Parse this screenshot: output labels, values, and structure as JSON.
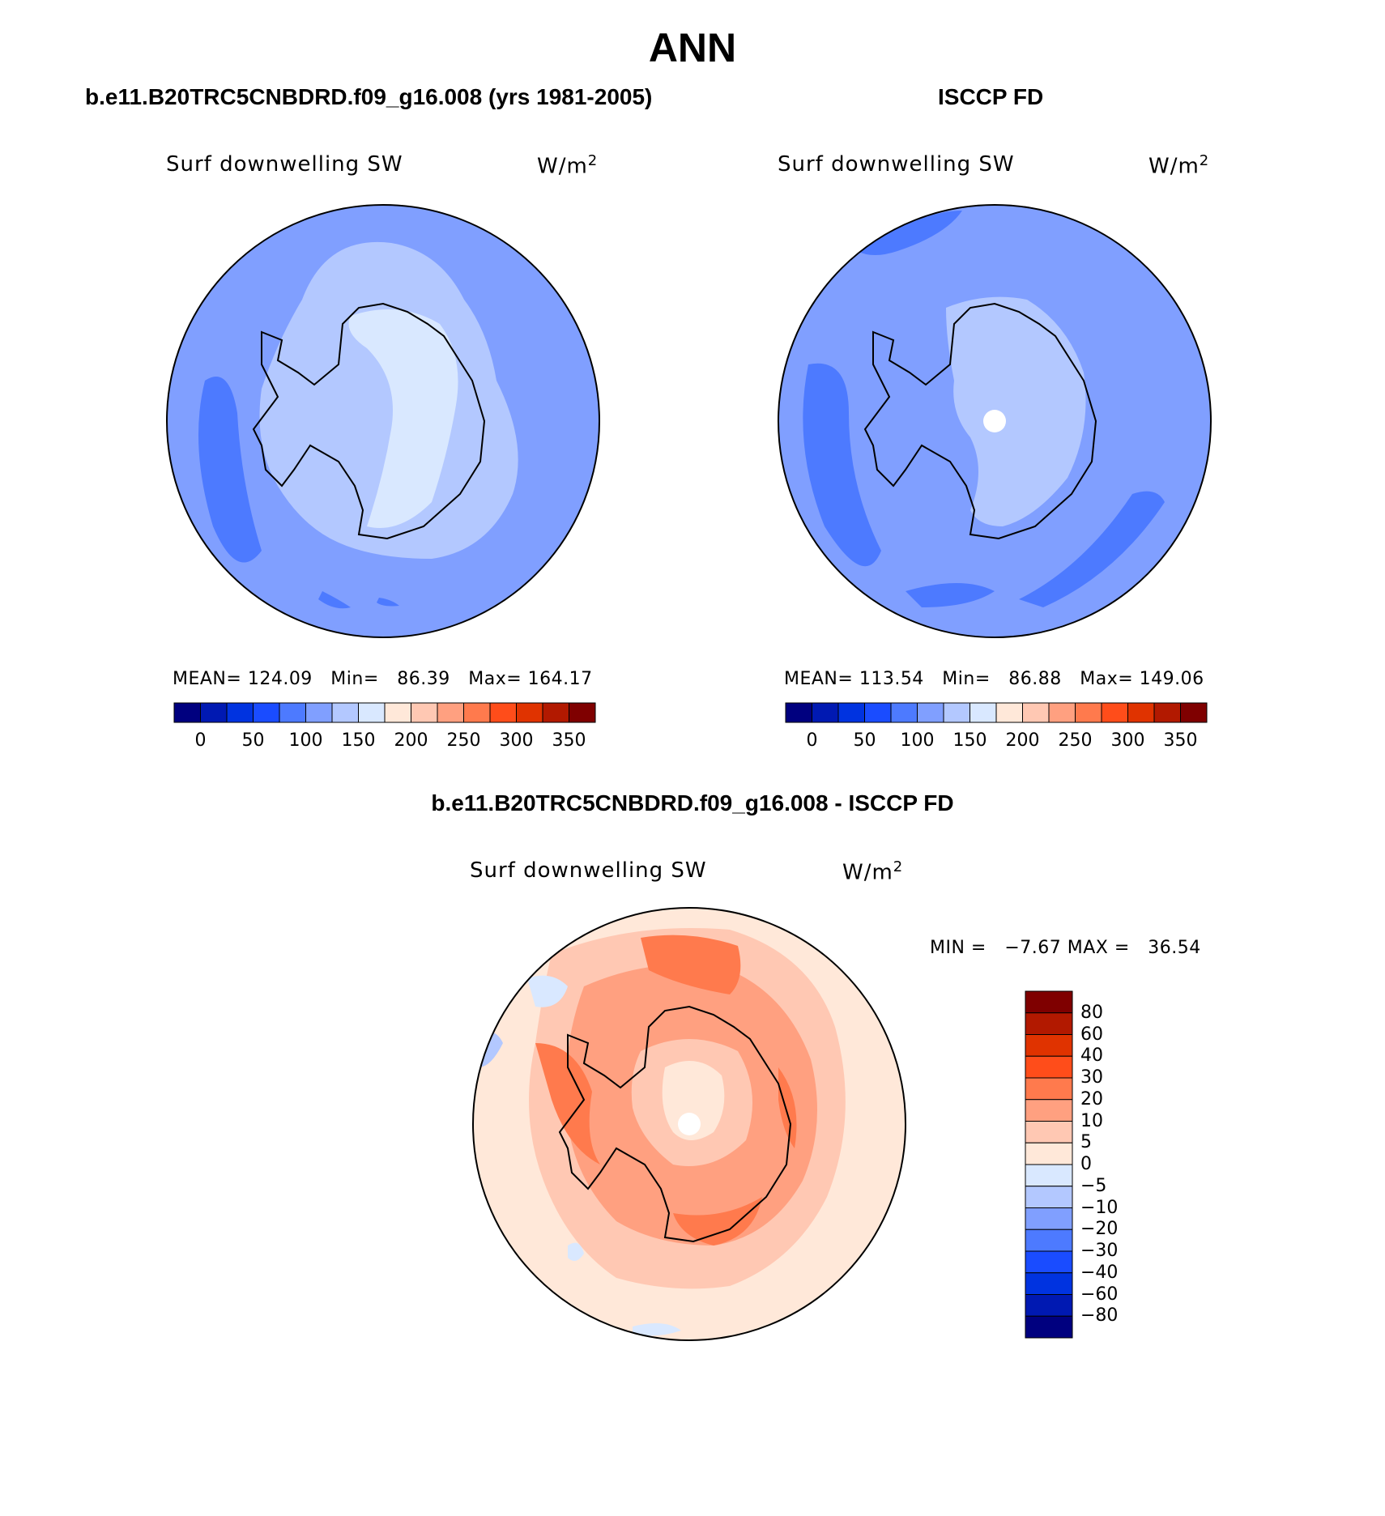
{
  "title": "ANN",
  "panels": {
    "model": {
      "title": "b.e11.B20TRC5CNBDRD.f09_g16.008 (yrs 1981-2005)",
      "variable": "Surf downwelling SW",
      "units": "W/m",
      "units_exp": "2",
      "stats": {
        "mean_label": "MEAN=",
        "mean": "124.09",
        "min_label": "Min=",
        "min": "86.39",
        "max_label": "Max=",
        "max": "164.17"
      },
      "colorbar_ticks": [
        "0",
        "50",
        "100",
        "150",
        "200",
        "250",
        "300",
        "350"
      ]
    },
    "obs": {
      "title": "ISCCP FD",
      "variable": "Surf downwelling SW",
      "units": "W/m",
      "units_exp": "2",
      "stats": {
        "mean_label": "MEAN=",
        "mean": "113.54",
        "min_label": "Min=",
        "min": "86.88",
        "max_label": "Max=",
        "max": "149.06"
      },
      "colorbar_ticks": [
        "0",
        "50",
        "100",
        "150",
        "200",
        "250",
        "300",
        "350"
      ]
    },
    "diff": {
      "title": "b.e11.B20TRC5CNBDRD.f09_g16.008 - ISCCP FD",
      "variable": "Surf downwelling SW",
      "units": "W/m",
      "units_exp": "2",
      "minmax": {
        "min_label": "MIN =",
        "min": "−7.67",
        "max_label": "MAX =",
        "max": "36.54"
      },
      "colorbar_ticks": [
        "80",
        "60",
        "40",
        "30",
        "20",
        "10",
        "5",
        "0",
        "−5",
        "−10",
        "−20",
        "−30",
        "−40",
        "−60",
        "−80"
      ]
    }
  },
  "colors": {
    "abs_scale": [
      "#00007f",
      "#0019b2",
      "#0033e0",
      "#1a4cff",
      "#4d7aff",
      "#809fff",
      "#b3c8ff",
      "#d9e8ff",
      "#ffe8d9",
      "#ffc8b3",
      "#ffa080",
      "#ff7a4d",
      "#ff4d1a",
      "#e03300",
      "#b21900",
      "#7f0000"
    ],
    "diff_scale": [
      "#7f0000",
      "#b21900",
      "#e03300",
      "#ff4d1a",
      "#ff7a4d",
      "#ffa080",
      "#ffc8b3",
      "#ffe8d9",
      "#d9e8ff",
      "#b3c8ff",
      "#809fff",
      "#4d7aff",
      "#1a4cff",
      "#0033e0",
      "#0019b2",
      "#00007f"
    ]
  }
}
